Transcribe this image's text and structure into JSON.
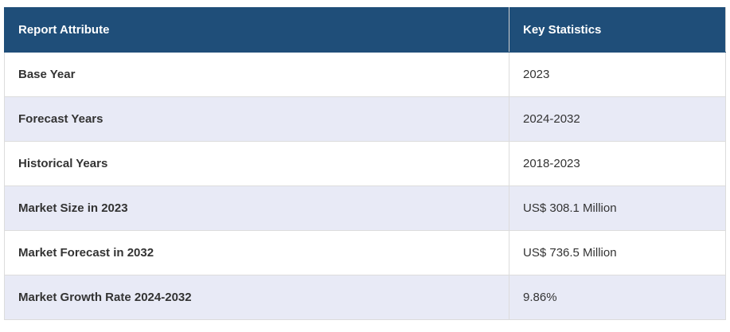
{
  "table": {
    "header": [
      "Report Attribute",
      "Key Statistics"
    ],
    "rows": [
      [
        "Base Year",
        "2023"
      ],
      [
        "Forecast Years",
        "2024-2032"
      ],
      [
        "Historical Years",
        "2018-2023"
      ],
      [
        "Market Size in 2023",
        "US$ 308.1 Million"
      ],
      [
        "Market Forecast in 2032",
        "US$ 736.5 Million"
      ],
      [
        "Market Growth Rate 2024-2032",
        "9.86%"
      ]
    ]
  }
}
